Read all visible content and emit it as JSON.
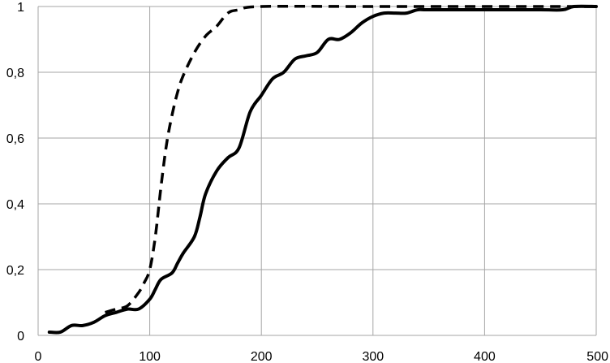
{
  "chart_data": {
    "type": "line",
    "title": "",
    "xlabel": "",
    "ylabel": "",
    "xlim": [
      0,
      500
    ],
    "ylim": [
      0,
      1
    ],
    "grid": true,
    "legend": "none",
    "x_ticks": [
      0,
      100,
      200,
      300,
      400,
      500
    ],
    "x_tick_labels": [
      "0",
      "100",
      "200",
      "300",
      "400",
      "500"
    ],
    "y_ticks": [
      0,
      0.2,
      0.4,
      0.6,
      0.8,
      1
    ],
    "y_tick_labels": [
      "0",
      "0,2",
      "0,4",
      "0,6",
      "0,8",
      "1"
    ],
    "series": [
      {
        "style": "solid",
        "color": "#000000",
        "x": [
          10,
          20,
          30,
          40,
          50,
          60,
          70,
          80,
          90,
          100,
          105,
          110,
          120,
          125,
          130,
          140,
          145,
          150,
          160,
          170,
          180,
          190,
          200,
          210,
          220,
          230,
          240,
          250,
          260,
          270,
          280,
          290,
          300,
          310,
          320,
          330,
          340,
          350,
          400,
          450,
          470,
          480,
          500
        ],
        "y": [
          0.01,
          0.01,
          0.03,
          0.03,
          0.04,
          0.06,
          0.07,
          0.08,
          0.08,
          0.11,
          0.14,
          0.17,
          0.19,
          0.22,
          0.25,
          0.3,
          0.36,
          0.43,
          0.5,
          0.54,
          0.57,
          0.68,
          0.73,
          0.78,
          0.8,
          0.84,
          0.85,
          0.86,
          0.9,
          0.9,
          0.92,
          0.95,
          0.97,
          0.98,
          0.98,
          0.98,
          0.99,
          0.99,
          0.99,
          0.99,
          0.99,
          1,
          1
        ]
      },
      {
        "style": "dashed",
        "color": "#000000",
        "x": [
          60,
          70,
          80,
          90,
          95,
          100,
          105,
          110,
          115,
          120,
          125,
          130,
          140,
          150,
          160,
          170,
          180,
          200,
          300,
          500
        ],
        "y": [
          0.07,
          0.08,
          0.09,
          0.13,
          0.16,
          0.2,
          0.3,
          0.45,
          0.58,
          0.67,
          0.74,
          0.79,
          0.86,
          0.91,
          0.94,
          0.98,
          0.99,
          1,
          1,
          1
        ]
      }
    ]
  }
}
